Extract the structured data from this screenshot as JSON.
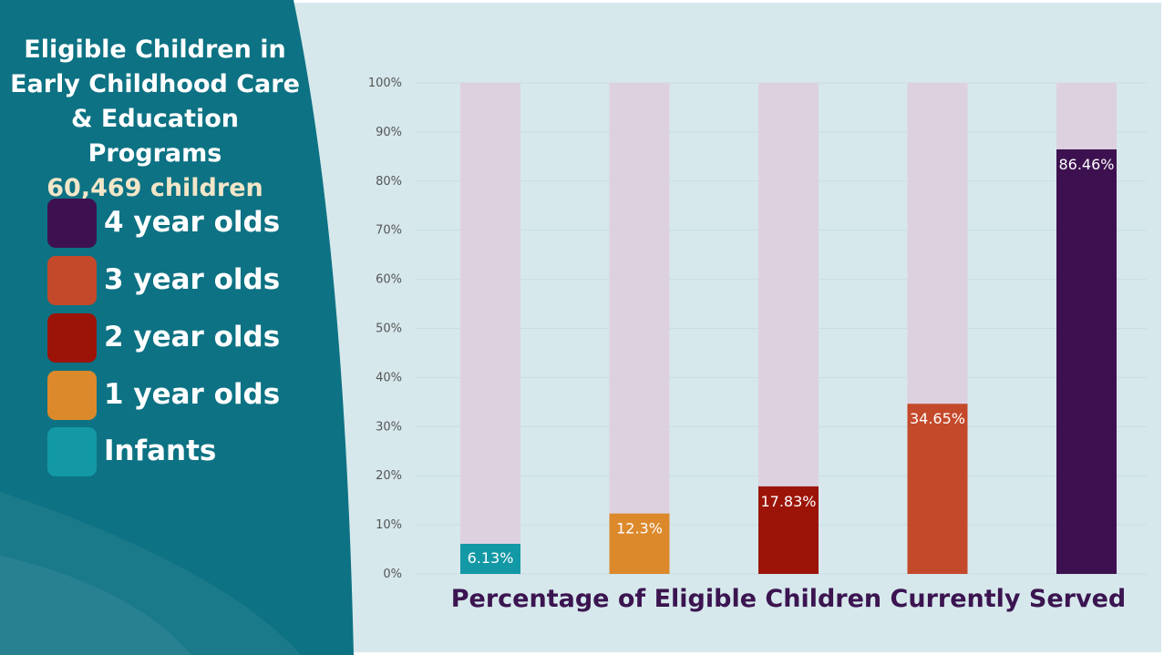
{
  "side_panel": {
    "title_lines": [
      "Eligible Children in",
      "Early Childhood Care",
      "& Education Programs"
    ],
    "total": "60,469 children",
    "background": "#0d7283"
  },
  "legend": [
    {
      "label": "4 year olds",
      "color": "#3d1150"
    },
    {
      "label": "3 year olds",
      "color": "#c4492a"
    },
    {
      "label": "2 year olds",
      "color": "#9c1408"
    },
    {
      "label": "1 year olds",
      "color": "#dc892c"
    },
    {
      "label": "Infants",
      "color": "#1398a6"
    }
  ],
  "chart_data": {
    "type": "bar",
    "title": "Percentage of Eligible Children Currently Served",
    "xlabel": "",
    "ylabel": "",
    "ylim": [
      0,
      100
    ],
    "yticks": [
      "0%",
      "10%",
      "20%",
      "30%",
      "40%",
      "50%",
      "60%",
      "70%",
      "80%",
      "90%",
      "100%"
    ],
    "grid": true,
    "background_bar_color": "#ddd1e0",
    "categories": [
      "Infants",
      "1 year olds",
      "2 year olds",
      "3 year olds",
      "4 year olds"
    ],
    "values": [
      6.13,
      12.3,
      17.83,
      34.65,
      86.46
    ],
    "data_labels": [
      "6.13%",
      "12.3%",
      "17.83%",
      "34.65%",
      "86.46%"
    ],
    "colors": [
      "#1398a6",
      "#dc892c",
      "#9c1408",
      "#c4492a",
      "#3d1150"
    ]
  }
}
